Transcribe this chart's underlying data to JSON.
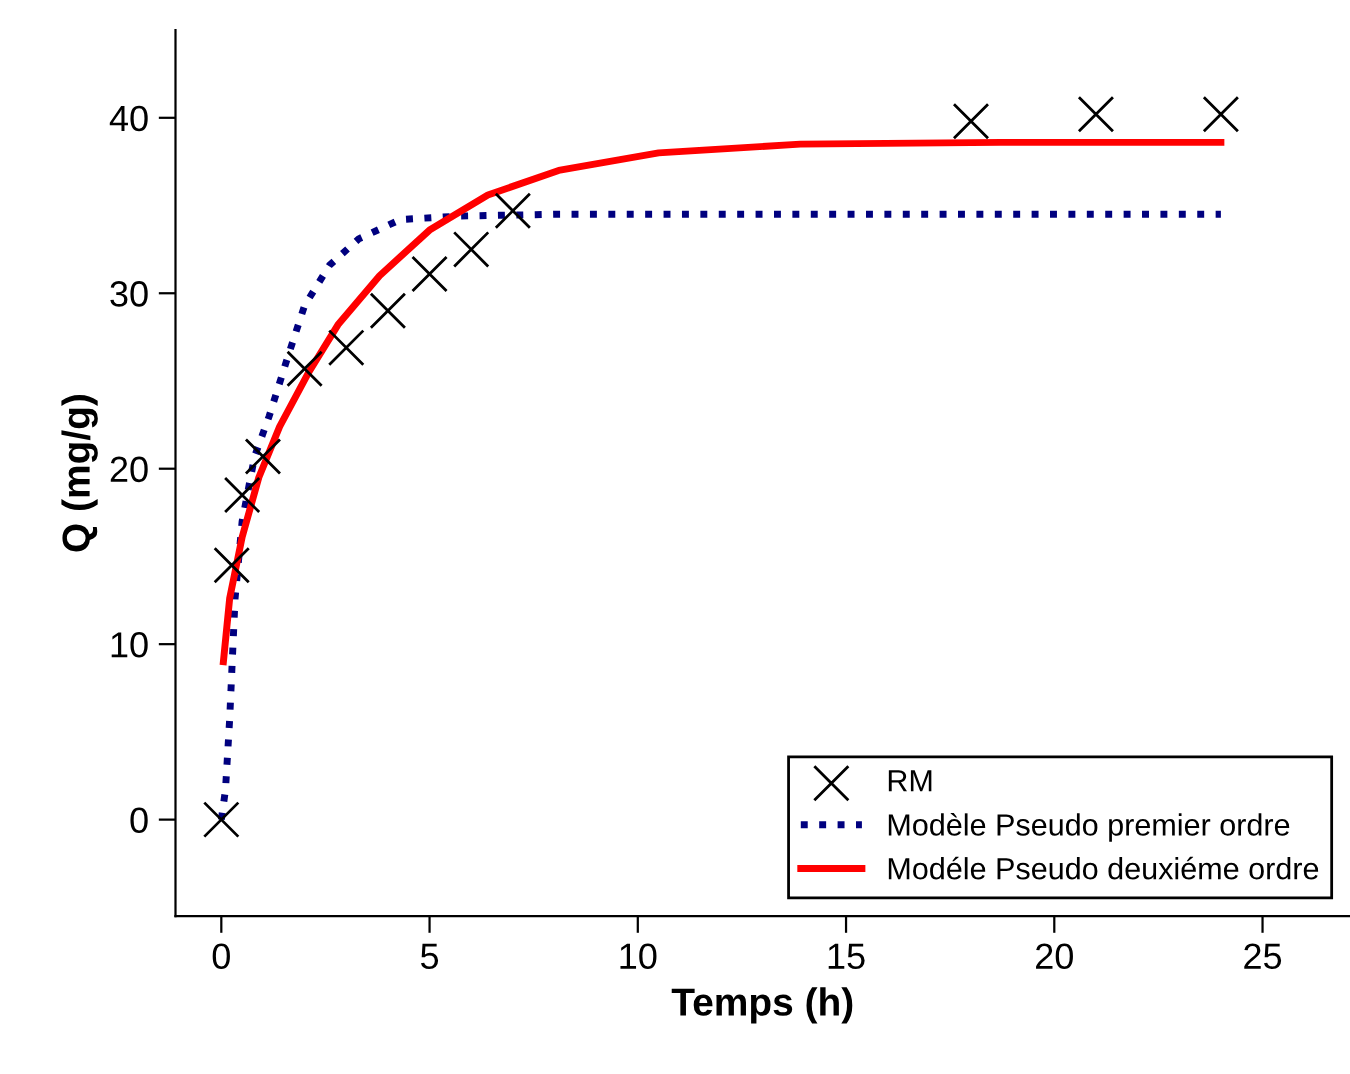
{
  "chart_data": {
    "type": "line",
    "xlabel": "Temps (h)",
    "ylabel": "Q (mg/g)",
    "xlim": [
      -1.1,
      27.1
    ],
    "ylim": [
      -5.5,
      45
    ],
    "xticks": [
      0,
      5,
      10,
      15,
      20,
      25
    ],
    "yticks": [
      0,
      10,
      20,
      30,
      40
    ],
    "grid": false,
    "legend": "bottom right",
    "series": [
      {
        "name": "RM",
        "type": "scatter",
        "marker": "cross",
        "color": "#000000",
        "x": [
          0,
          0.25,
          0.5,
          1,
          2,
          3,
          4,
          5,
          6,
          7,
          18,
          21,
          24
        ],
        "values": [
          0,
          14.5,
          18.5,
          20.7,
          25.7,
          26.9,
          29,
          31.1,
          32.5,
          34.7,
          39.8,
          40.2,
          40.2
        ]
      },
      {
        "name": "Modèle Pseudo premier ordre",
        "line_style": "dotted",
        "color": "#00007f",
        "x": [
          0,
          0.1,
          0.2,
          0.33,
          0.5,
          0.8,
          1.15,
          1.6,
          2,
          2.6,
          3.3,
          4.3,
          5.7,
          8,
          12,
          16,
          20,
          24
        ],
        "values": [
          0,
          1.7,
          5.7,
          12.6,
          17,
          20.7,
          23,
          26.4,
          29.3,
          31.6,
          33.1,
          34.2,
          34.4,
          34.5,
          34.5,
          34.5,
          34.5,
          34.5
        ]
      },
      {
        "name": "Modéle Pseudo deuxiéme ordre",
        "line_style": "solid",
        "color": "#ff0000",
        "x": [
          0.05,
          0.2,
          0.5,
          0.9,
          1.4,
          2.1,
          2.8,
          3.8,
          5,
          6.4,
          8.1,
          10.5,
          13.9,
          18.7,
          24
        ],
        "values": [
          9,
          12.6,
          16.1,
          19.5,
          22.4,
          25.5,
          28.2,
          31,
          33.6,
          35.6,
          37,
          38,
          38.5,
          38.6,
          38.6
        ]
      }
    ]
  }
}
